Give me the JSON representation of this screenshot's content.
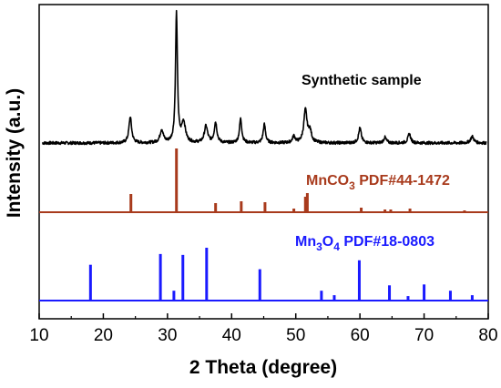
{
  "chart_data": {
    "type": "line",
    "xlabel": "2 Theta (degree)",
    "ylabel": "Intensity (a.u.)",
    "xlim": [
      10,
      80
    ],
    "xticks": [
      10,
      20,
      30,
      40,
      50,
      60,
      70,
      80
    ],
    "grid": false,
    "series": [
      {
        "name": "Synthetic sample",
        "style": "xrd-pattern",
        "color": "#000000",
        "baseline": 0,
        "peaks": [
          {
            "x": 24.2,
            "y": 28,
            "w": 0.25
          },
          {
            "x": 29.1,
            "y": 14,
            "w": 0.3
          },
          {
            "x": 31.4,
            "y": 140,
            "w": 0.18
          },
          {
            "x": 32.5,
            "y": 22,
            "w": 0.35
          },
          {
            "x": 36.0,
            "y": 18,
            "w": 0.3
          },
          {
            "x": 37.5,
            "y": 22,
            "w": 0.25
          },
          {
            "x": 41.4,
            "y": 26,
            "w": 0.22
          },
          {
            "x": 45.1,
            "y": 20,
            "w": 0.22
          },
          {
            "x": 49.7,
            "y": 7,
            "w": 0.25
          },
          {
            "x": 51.5,
            "y": 35,
            "w": 0.3
          },
          {
            "x": 52.2,
            "y": 12,
            "w": 0.3
          },
          {
            "x": 60.0,
            "y": 16,
            "w": 0.25
          },
          {
            "x": 63.9,
            "y": 6,
            "w": 0.25
          },
          {
            "x": 67.7,
            "y": 10,
            "w": 0.25
          },
          {
            "x": 77.5,
            "y": 7,
            "w": 0.3
          }
        ]
      },
      {
        "name": "MnCO3 PDF#44-1472",
        "label_main": "MnCO",
        "label_sub": "3",
        "label_ref": " PDF#44-1472",
        "style": "stick",
        "color": "#a83a1c",
        "baseline": 0,
        "sticks": [
          {
            "x": 24.3,
            "y": 20
          },
          {
            "x": 31.4,
            "y": 70
          },
          {
            "x": 37.5,
            "y": 10
          },
          {
            "x": 41.5,
            "y": 12
          },
          {
            "x": 45.2,
            "y": 11
          },
          {
            "x": 49.7,
            "y": 4
          },
          {
            "x": 51.5,
            "y": 17
          },
          {
            "x": 51.8,
            "y": 21
          },
          {
            "x": 60.2,
            "y": 5
          },
          {
            "x": 63.9,
            "y": 3
          },
          {
            "x": 64.8,
            "y": 3
          },
          {
            "x": 67.8,
            "y": 4
          },
          {
            "x": 76.3,
            "y": 2
          }
        ]
      },
      {
        "name": "Mn3O4 PDF#18-0803",
        "label_main": "Mn",
        "label_sub": "3",
        "label_mid": "O",
        "label_sub2": "4",
        "label_ref": "  PDF#18-0803",
        "style": "stick",
        "color": "#1a1aff",
        "baseline": 0,
        "sticks": [
          {
            "x": 18.0,
            "y": 40
          },
          {
            "x": 28.9,
            "y": 52
          },
          {
            "x": 31.0,
            "y": 11
          },
          {
            "x": 32.4,
            "y": 51
          },
          {
            "x": 36.1,
            "y": 59
          },
          {
            "x": 44.4,
            "y": 35
          },
          {
            "x": 54.0,
            "y": 11
          },
          {
            "x": 56.0,
            "y": 6
          },
          {
            "x": 59.9,
            "y": 45
          },
          {
            "x": 64.6,
            "y": 17
          },
          {
            "x": 67.5,
            "y": 5
          },
          {
            "x": 70.0,
            "y": 18
          },
          {
            "x": 74.1,
            "y": 11
          },
          {
            "x": 77.5,
            "y": 6
          }
        ]
      }
    ]
  }
}
